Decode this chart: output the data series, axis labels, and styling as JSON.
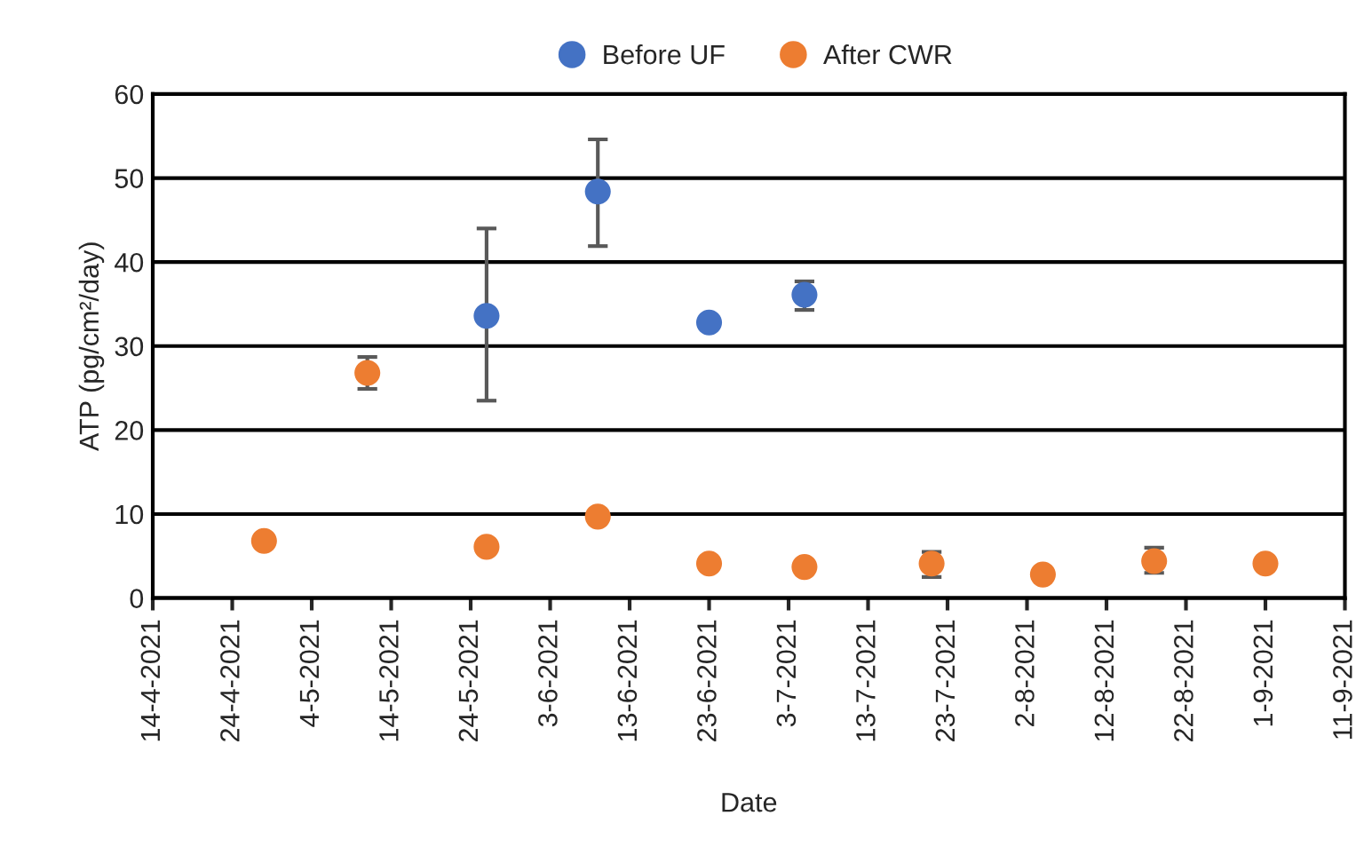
{
  "chart_data": {
    "type": "scatter",
    "xlabel": "Date",
    "ylabel": "ATP (pg/cm²/day)",
    "series": [
      {
        "name": "Before UF",
        "color": "#4472c4",
        "x": [
          "2021-05-26",
          "2021-06-09",
          "2021-06-23",
          "2021-07-05"
        ],
        "values": [
          33.6,
          48.4,
          32.8,
          36.1
        ],
        "errors": [
          [
            23.5,
            44.0
          ],
          [
            41.9,
            54.6
          ],
          null,
          [
            34.3,
            37.7
          ]
        ]
      },
      {
        "name": "After CWR",
        "color": "#ed7d31",
        "x": [
          "2021-04-28",
          "2021-05-11",
          "2021-05-26",
          "2021-06-09",
          "2021-06-23",
          "2021-07-05",
          "2021-07-21",
          "2021-08-04",
          "2021-08-18",
          "2021-09-01"
        ],
        "values": [
          6.8,
          26.8,
          6.1,
          9.7,
          4.1,
          3.7,
          4.1,
          2.8,
          4.4,
          4.1
        ],
        "errors": [
          null,
          [
            24.9,
            28.7
          ],
          null,
          null,
          null,
          null,
          [
            2.5,
            5.5
          ],
          null,
          [
            3.0,
            6.0
          ],
          null
        ]
      }
    ],
    "xlim": [
      "2021-04-14",
      "2021-09-11"
    ],
    "xticks": [
      {
        "value": "2021-04-14",
        "label": "14-4-2021"
      },
      {
        "value": "2021-04-24",
        "label": "24-4-2021"
      },
      {
        "value": "2021-05-04",
        "label": "4-5-2021"
      },
      {
        "value": "2021-05-14",
        "label": "14-5-2021"
      },
      {
        "value": "2021-05-24",
        "label": "24-5-2021"
      },
      {
        "value": "2021-06-03",
        "label": "3-6-2021"
      },
      {
        "value": "2021-06-13",
        "label": "13-6-2021"
      },
      {
        "value": "2021-06-23",
        "label": "23-6-2021"
      },
      {
        "value": "2021-07-03",
        "label": "3-7-2021"
      },
      {
        "value": "2021-07-13",
        "label": "13-7-2021"
      },
      {
        "value": "2021-07-23",
        "label": "23-7-2021"
      },
      {
        "value": "2021-08-02",
        "label": "2-8-2021"
      },
      {
        "value": "2021-08-12",
        "label": "12-8-2021"
      },
      {
        "value": "2021-08-22",
        "label": "22-8-2021"
      },
      {
        "value": "2021-09-01",
        "label": "1-9-2021"
      },
      {
        "value": "2021-09-11",
        "label": "11-9-2021"
      }
    ],
    "ylim": [
      0,
      60
    ],
    "yticks": [
      0,
      10,
      20,
      30,
      40,
      50,
      60
    ],
    "grid": "y",
    "legend": "top",
    "marker": "circle"
  }
}
